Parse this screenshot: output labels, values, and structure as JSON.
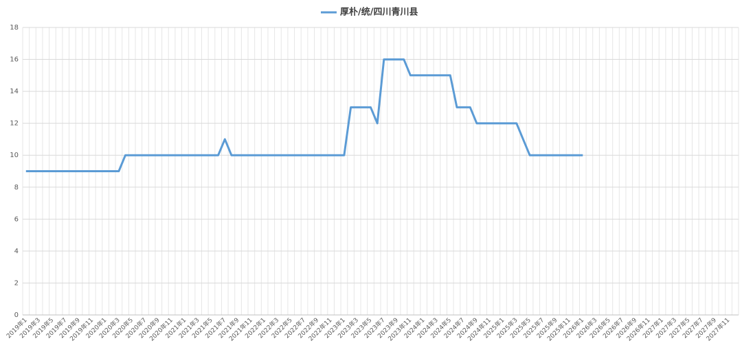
{
  "chart_data": {
    "type": "line",
    "categories": [
      "2019年1",
      null,
      "2019年3",
      null,
      "2019年5",
      null,
      "2019年7",
      null,
      "2019年9",
      null,
      "2019年11",
      null,
      "2020年1",
      null,
      "2020年3",
      null,
      "2020年5",
      null,
      "2020年7",
      null,
      "2020年9",
      null,
      "2020年11",
      null,
      "2021年1",
      null,
      "2021年3",
      null,
      "2021年5",
      null,
      "2021年7",
      null,
      "2021年9",
      null,
      "2021年11",
      null,
      "2022年1",
      null,
      "2022年3",
      null,
      "2022年5",
      null,
      "2022年7",
      null,
      "2022年9",
      null,
      "2022年11",
      null,
      "2023年1",
      null,
      "2023年3",
      null,
      "2023年5",
      null,
      "2023年7",
      null,
      "2023年9",
      null,
      "2023年11",
      null,
      "2024年1",
      null,
      "2024年3",
      null,
      "2024年5",
      null,
      "2024年7",
      null,
      "2024年9",
      null,
      "2024年11",
      null,
      "2025年1",
      null,
      "2025年3",
      null,
      "2025年5",
      null,
      "2025年7",
      null,
      "2025年9",
      null,
      "2025年11",
      null,
      "2026年1",
      null,
      "2026年3",
      null,
      "2026年5",
      null,
      "2026年7",
      null,
      "2026年9",
      null,
      "2026年11",
      null,
      "2027年1",
      null,
      "2027年3",
      null,
      "2027年5",
      null,
      "2027年7",
      null,
      "2027年9",
      null,
      "2027年11",
      null
    ],
    "series": [
      {
        "name": "厚朴/统/四川青川县",
        "color": "#5b9bd5",
        "values": [
          9,
          9,
          9,
          9,
          9,
          9,
          9,
          9,
          9,
          9,
          9,
          9,
          9,
          9,
          9,
          10,
          10,
          10,
          10,
          10,
          10,
          10,
          10,
          10,
          10,
          10,
          10,
          10,
          10,
          10,
          11,
          10,
          10,
          10,
          10,
          10,
          10,
          10,
          10,
          10,
          10,
          10,
          10,
          10,
          10,
          10,
          10,
          10,
          10,
          13,
          13,
          13,
          13,
          12,
          16,
          16,
          16,
          16,
          15,
          15,
          15,
          15,
          15,
          15,
          15,
          13,
          13,
          13,
          12,
          12,
          12,
          12,
          12,
          12,
          12,
          11,
          10,
          10,
          10,
          10,
          10,
          10,
          10,
          10,
          10,
          null,
          null,
          null,
          null,
          null,
          null,
          null,
          null,
          null,
          null,
          null,
          null,
          null,
          null,
          null,
          null,
          null,
          null,
          null,
          null,
          null,
          null,
          null
        ]
      }
    ],
    "ylim": [
      0,
      18
    ],
    "yticks": [
      0,
      2,
      4,
      6,
      8,
      10,
      12,
      14,
      16,
      18
    ],
    "grid": true,
    "legend": "top"
  }
}
